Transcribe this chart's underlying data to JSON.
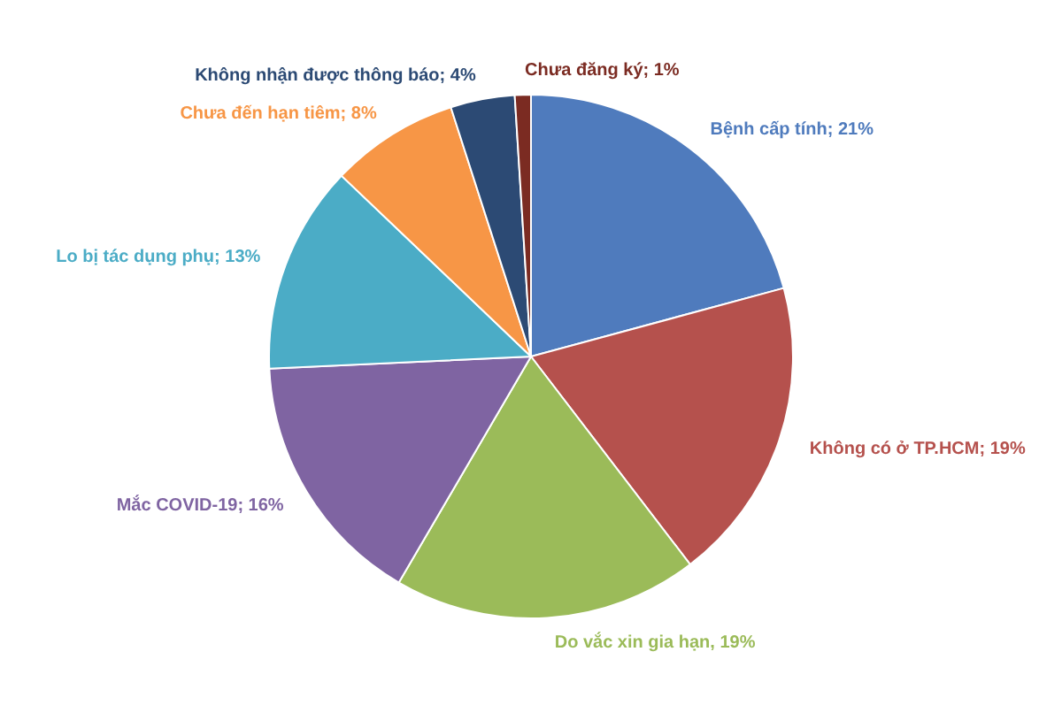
{
  "chart_data": {
    "type": "pie",
    "categories": [
      "Bệnh cấp tính",
      "Không có ở TP.HCM",
      "Do vắc xin gia hạn",
      "Mắc COVID-19",
      "Lo bị tác dụng phụ",
      "Chưa đến hạn tiêm",
      "Không nhận được thông báo",
      "Chưa đăng ký"
    ],
    "values": [
      21,
      19,
      19,
      16,
      13,
      8,
      4,
      1
    ],
    "colors": [
      "#4f7bbd",
      "#b5514d",
      "#9bbb59",
      "#7f64a2",
      "#4bacc6",
      "#f79646",
      "#2c4a74",
      "#7b2b22"
    ],
    "value_labels": [
      "; 21%",
      "; 19%",
      ", 19%",
      "; 16%",
      "; 13%",
      "; 8%",
      "; 4%",
      "; 1%"
    ]
  }
}
